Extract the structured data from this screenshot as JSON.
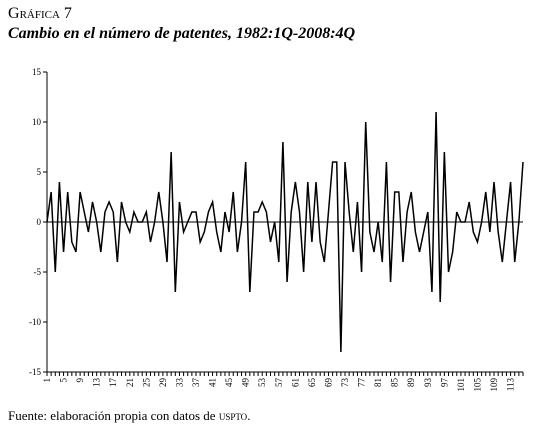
{
  "figure": {
    "label_prefix": "G",
    "label_rest": "ráfica 7",
    "title": "Cambio en el número de patentes, 1982:1Q-2008:4Q"
  },
  "source": {
    "text_main": "Fuente: elaboración propia con datos de ",
    "text_org": "uspto",
    "text_end": "."
  },
  "chart_data": {
    "type": "line",
    "title": "Cambio en el número de patentes, 1982:1Q-2008:4Q",
    "xlabel": "",
    "ylabel": "",
    "ylim": [
      -15,
      15
    ],
    "yticks": [
      -15,
      -10,
      -5,
      0,
      5,
      10,
      15
    ],
    "xticks": [
      1,
      5,
      9,
      13,
      17,
      21,
      25,
      29,
      33,
      37,
      41,
      45,
      49,
      53,
      57,
      61,
      65,
      69,
      73,
      77,
      81,
      85,
      89,
      93,
      97,
      101,
      105,
      109,
      113
    ],
    "grid": false,
    "zero_line": true,
    "x": [
      1,
      2,
      3,
      4,
      5,
      6,
      7,
      8,
      9,
      10,
      11,
      12,
      13,
      14,
      15,
      16,
      17,
      18,
      19,
      20,
      21,
      22,
      23,
      24,
      25,
      26,
      27,
      28,
      29,
      30,
      31,
      32,
      33,
      34,
      35,
      36,
      37,
      38,
      39,
      40,
      41,
      42,
      43,
      44,
      45,
      46,
      47,
      48,
      49,
      50,
      51,
      52,
      53,
      54,
      55,
      56,
      57,
      58,
      59,
      60,
      61,
      62,
      63,
      64,
      65,
      66,
      67,
      68,
      69,
      70,
      71,
      72,
      73,
      74,
      75,
      76,
      77,
      78,
      79,
      80,
      81,
      82,
      83,
      84,
      85,
      86,
      87,
      88,
      89,
      90,
      91,
      92,
      93,
      94,
      95,
      96,
      97,
      98,
      99,
      100,
      101,
      102,
      103,
      104,
      105,
      106,
      107,
      108,
      109,
      110,
      111,
      112,
      113,
      114,
      115,
      116
    ],
    "series": [
      {
        "values": [
          0,
          3,
          -5,
          4,
          -3,
          3,
          -2,
          -3,
          3,
          1,
          -1,
          2,
          0,
          -3,
          1,
          2,
          1,
          -4,
          2,
          0,
          -1,
          1,
          0,
          0,
          1,
          -2,
          0,
          3,
          0,
          -4,
          7,
          -7,
          2,
          -1,
          0,
          1,
          1,
          -2,
          -1,
          1,
          2,
          -1,
          -3,
          1,
          -1,
          3,
          -3,
          0,
          6,
          -7,
          1,
          1,
          2,
          1,
          -2,
          0,
          -4,
          8,
          -6,
          1,
          4,
          1,
          -5,
          4,
          -2,
          4,
          -2,
          -4,
          1,
          6,
          6,
          -13,
          6,
          1,
          -3,
          2,
          -5,
          10,
          -1,
          -3,
          0,
          -4,
          6,
          -6,
          3,
          3,
          -4,
          1,
          3,
          -1,
          -3,
          -1,
          1,
          -7,
          11,
          -8,
          7,
          -5,
          -3,
          1,
          0,
          0,
          2,
          -1,
          -2,
          0,
          3,
          -1,
          4,
          -1,
          -4,
          0,
          4,
          -4,
          0,
          6
        ]
      }
    ]
  }
}
